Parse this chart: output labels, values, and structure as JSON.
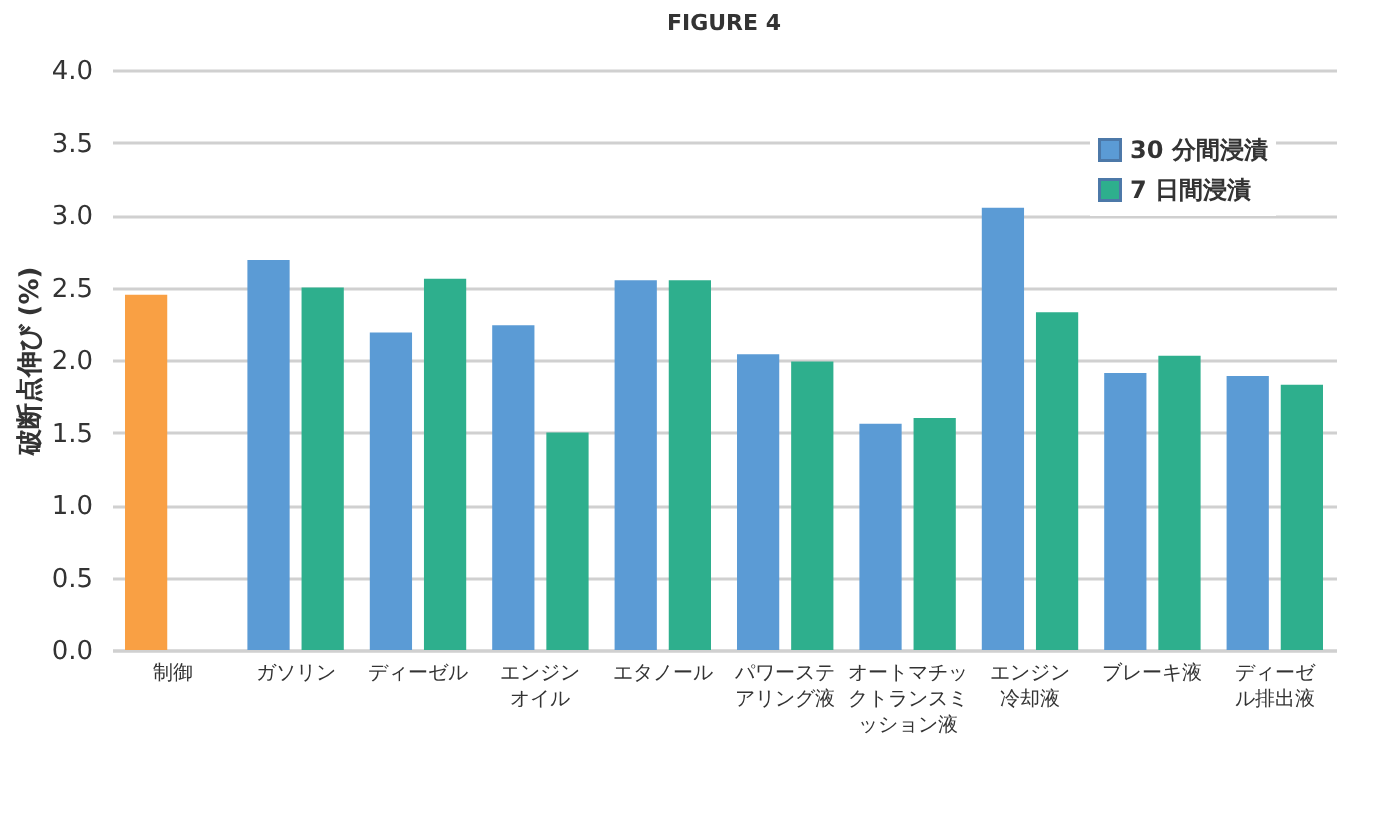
{
  "chart_data": {
    "type": "bar",
    "title": "FIGURE 4",
    "ylabel": "破断点伸び (%)",
    "categories": [
      "制御",
      "ガソリン",
      "ディーゼル",
      "エンジンオイル",
      "エタノール",
      "パワーステアリング液",
      "オートマチックトランスミッション液",
      "エンジン冷却液",
      "ブレーキ液",
      "ディーゼル排出液"
    ],
    "series": [
      {
        "name": "30 分間浸漬",
        "color": "#5b9bd5",
        "colors": [
          "#f9a044",
          "#5b9bd5",
          "#5b9bd5",
          "#5b9bd5",
          "#5b9bd5",
          "#5b9bd5",
          "#5b9bd5",
          "#5b9bd5",
          "#5b9bd5",
          "#5b9bd5"
        ],
        "values": [
          2.45,
          2.69,
          2.19,
          2.24,
          2.55,
          2.04,
          1.56,
          3.05,
          1.91,
          1.89
        ]
      },
      {
        "name": "7 日間浸漬",
        "color": "#2eaf8d",
        "values": [
          null,
          2.5,
          2.56,
          1.5,
          2.55,
          1.99,
          1.6,
          2.33,
          2.03,
          1.83
        ]
      }
    ],
    "ylim": [
      0,
      4
    ],
    "yticks": [
      {
        "value": 0,
        "label": "0.0"
      },
      {
        "value": 0.5,
        "label": "0.5"
      },
      {
        "value": 1,
        "label": "1.0"
      },
      {
        "value": 1.5,
        "label": "1.5"
      },
      {
        "value": 2,
        "label": "2.0"
      },
      {
        "value": 2.5,
        "label": "2.5"
      },
      {
        "value": 3,
        "label": "3.0"
      },
      {
        "value": 3.5,
        "label": "3.5"
      },
      {
        "value": 4,
        "label": "4.0"
      }
    ],
    "grid": "y",
    "legend": "top right"
  }
}
